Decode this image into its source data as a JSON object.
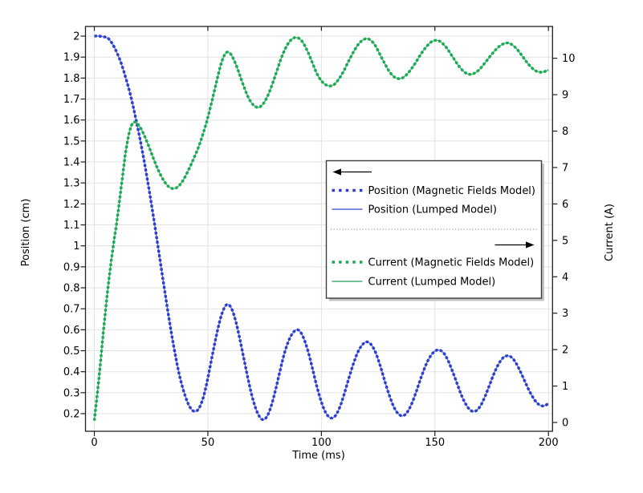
{
  "chart_data": {
    "type": "line",
    "title": "",
    "xlabel": "Time (ms)",
    "ylabel_left": "Position (cm)",
    "ylabel_right": "Current (A)",
    "grid": true,
    "background": "#ffffff",
    "xlim": [
      -3.9,
      201.8
    ],
    "ylim_left": [
      0.116,
      2.046
    ],
    "ylim_right": [
      -0.242,
      10.873
    ],
    "x_tick_values": [
      0,
      50,
      100,
      150,
      200
    ],
    "x_tick_labels": [
      "0",
      "50",
      "100",
      "150",
      "200"
    ],
    "left_tick_values": [
      0.2,
      0.3,
      0.4,
      0.5,
      0.6,
      0.7,
      0.8,
      0.9,
      1.0,
      1.1,
      1.2,
      1.3,
      1.4,
      1.5,
      1.6,
      1.7,
      1.8,
      1.9,
      2.0
    ],
    "left_tick_labels": [
      "0.2",
      "0.3",
      "0.4",
      "0.5",
      "0.6",
      "0.7",
      "0.8",
      "0.9",
      "1",
      "1.1",
      "1.2",
      "1.3",
      "1.4",
      "1.5",
      "1.6",
      "1.7",
      "1.8",
      "1.9",
      "2"
    ],
    "right_tick_values": [
      0,
      1,
      2,
      3,
      4,
      5,
      6,
      7,
      8,
      9,
      10
    ],
    "right_tick_labels": [
      "0",
      "1",
      "2",
      "3",
      "4",
      "5",
      "6",
      "7",
      "8",
      "9",
      "10"
    ],
    "x_ms": [
      0,
      2,
      4,
      6,
      8,
      10,
      12,
      14,
      16,
      18,
      20,
      22,
      24,
      26,
      28,
      30,
      32,
      34,
      36,
      38,
      40,
      42,
      44,
      46,
      48,
      50,
      52,
      54,
      56,
      58,
      60,
      62,
      64,
      66,
      68,
      70,
      72,
      74,
      76,
      78,
      80,
      82,
      84,
      86,
      88,
      90,
      92,
      94,
      96,
      98,
      100,
      102,
      104,
      106,
      108,
      110,
      112,
      114,
      116,
      118,
      120,
      122,
      124,
      126,
      128,
      130,
      132,
      134,
      136,
      138,
      140,
      142,
      144,
      146,
      148,
      150,
      152,
      154,
      156,
      158,
      160,
      162,
      164,
      166,
      168,
      170,
      172,
      174,
      176,
      178,
      180,
      182,
      184,
      186,
      188,
      190,
      192,
      194,
      196,
      198,
      200
    ],
    "position_cm": [
      2.0,
      2.0,
      1.997,
      1.99,
      1.962,
      1.92,
      1.865,
      1.795,
      1.715,
      1.62,
      1.515,
      1.4,
      1.275,
      1.14,
      1.0,
      0.855,
      0.715,
      0.58,
      0.46,
      0.36,
      0.285,
      0.233,
      0.211,
      0.224,
      0.278,
      0.37,
      0.48,
      0.585,
      0.67,
      0.717,
      0.71,
      0.652,
      0.56,
      0.455,
      0.35,
      0.262,
      0.2,
      0.172,
      0.186,
      0.24,
      0.322,
      0.415,
      0.498,
      0.558,
      0.592,
      0.598,
      0.565,
      0.502,
      0.418,
      0.33,
      0.255,
      0.203,
      0.18,
      0.188,
      0.228,
      0.292,
      0.365,
      0.435,
      0.492,
      0.528,
      0.542,
      0.528,
      0.488,
      0.425,
      0.352,
      0.285,
      0.23,
      0.198,
      0.19,
      0.21,
      0.253,
      0.312,
      0.375,
      0.432,
      0.473,
      0.498,
      0.503,
      0.487,
      0.448,
      0.395,
      0.336,
      0.28,
      0.238,
      0.214,
      0.213,
      0.236,
      0.28,
      0.335,
      0.39,
      0.436,
      0.466,
      0.476,
      0.466,
      0.436,
      0.392,
      0.345,
      0.3,
      0.264,
      0.242,
      0.237,
      0.248
    ],
    "current_A": [
      0.05,
      1.2,
      2.5,
      3.7,
      4.7,
      5.55,
      6.55,
      7.5,
      8.1,
      8.25,
      8.12,
      7.88,
      7.58,
      7.25,
      6.95,
      6.7,
      6.52,
      6.43,
      6.44,
      6.55,
      6.75,
      7.0,
      7.28,
      7.58,
      7.95,
      8.38,
      8.88,
      9.4,
      9.88,
      10.15,
      10.12,
      9.88,
      9.55,
      9.2,
      8.9,
      8.72,
      8.65,
      8.72,
      8.92,
      9.22,
      9.58,
      9.95,
      10.25,
      10.46,
      10.56,
      10.55,
      10.42,
      10.18,
      9.88,
      9.58,
      9.38,
      9.27,
      9.24,
      9.3,
      9.46,
      9.67,
      9.92,
      10.16,
      10.36,
      10.49,
      10.54,
      10.48,
      10.32,
      10.08,
      9.84,
      9.63,
      9.49,
      9.44,
      9.47,
      9.58,
      9.74,
      9.93,
      10.13,
      10.3,
      10.43,
      10.49,
      10.47,
      10.37,
      10.21,
      10.02,
      9.83,
      9.68,
      9.58,
      9.56,
      9.61,
      9.72,
      9.87,
      10.03,
      10.18,
      10.31,
      10.39,
      10.42,
      10.37,
      10.26,
      10.1,
      9.93,
      9.78,
      9.67,
      9.62,
      9.63,
      9.68
    ],
    "series": [
      {
        "name": "Position (Magnetic Fields Model)",
        "data_key": "position_cm",
        "axis": "left",
        "style": "dotted",
        "color": "#2a3bd0"
      },
      {
        "name": "Position (Lumped Model)",
        "data_key": "position_cm",
        "axis": "left",
        "style": "solid",
        "color": "#5468d4"
      },
      {
        "name": "Current (Magnetic Fields Model)",
        "data_key": "current_A",
        "axis": "right",
        "style": "dotted",
        "color": "#16ab51"
      },
      {
        "name": "Current (Lumped Model)",
        "data_key": "current_A",
        "axis": "right",
        "style": "solid",
        "color": "#46ad74"
      }
    ],
    "legend": {
      "position": "middle-right",
      "rows": [
        {
          "type": "arrow",
          "direction": "left"
        },
        {
          "type": "entry",
          "label": "Position (Magnetic Fields Model)",
          "style": "dotted",
          "color": "#2a3bd0"
        },
        {
          "type": "entry",
          "label": "Position (Lumped Model)",
          "style": "solid",
          "color": "#5468d4"
        },
        {
          "type": "separator"
        },
        {
          "type": "arrow",
          "direction": "right"
        },
        {
          "type": "entry",
          "label": "Current (Magnetic Fields Model)",
          "style": "dotted",
          "color": "#16ab51"
        },
        {
          "type": "entry",
          "label": "Current (Lumped Model)",
          "style": "solid",
          "color": "#46ad74"
        }
      ]
    }
  }
}
